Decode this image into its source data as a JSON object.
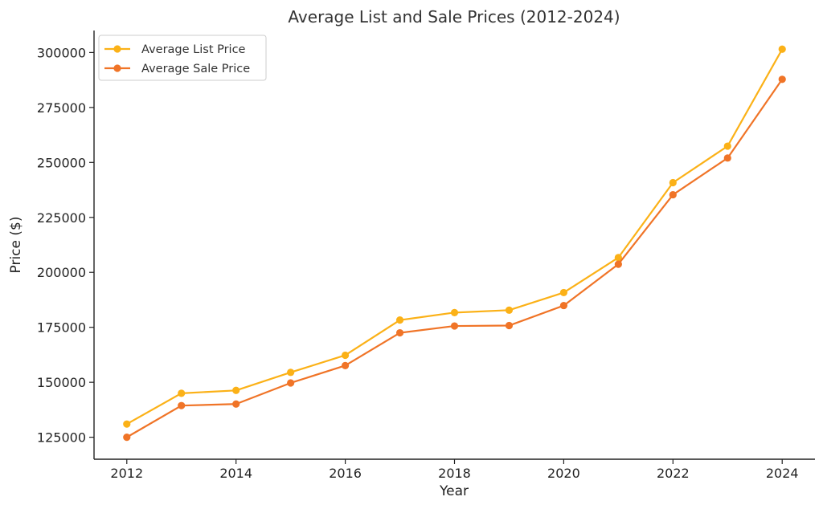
{
  "chart_data": {
    "type": "line",
    "title": "Average List and Sale Prices (2012-2024)",
    "xlabel": "Year",
    "ylabel": "Price ($)",
    "x": [
      2012,
      2013,
      2014,
      2015,
      2016,
      2017,
      2018,
      2019,
      2020,
      2021,
      2022,
      2023,
      2024
    ],
    "xlim": [
      2011.4,
      2024.6
    ],
    "ylim": [
      115000,
      310000
    ],
    "xticks": [
      2012,
      2014,
      2016,
      2018,
      2020,
      2022,
      2024
    ],
    "yticks": [
      125000,
      150000,
      175000,
      200000,
      225000,
      250000,
      275000,
      300000
    ],
    "grid": false,
    "legend_position": "top-left",
    "series": [
      {
        "name": "Average List Price",
        "color": "#FBB117",
        "values": [
          131000,
          145000,
          146300,
          154500,
          162300,
          178300,
          181700,
          182800,
          190800,
          206700,
          240800,
          257400,
          301500
        ]
      },
      {
        "name": "Average Sale Price",
        "color": "#F07427",
        "values": [
          125000,
          139400,
          140100,
          149700,
          157600,
          172500,
          175600,
          175800,
          184900,
          203700,
          235300,
          252000,
          287800
        ]
      }
    ]
  }
}
